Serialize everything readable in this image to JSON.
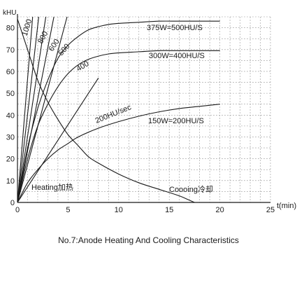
{
  "chart_data": {
    "type": "line",
    "title": "No.7:Anode Heating And Cooling Characteristics",
    "xlabel": "t(min)",
    "ylabel": "kHU",
    "xlim": [
      0,
      25
    ],
    "ylim": [
      0,
      85
    ],
    "xticks": [
      0,
      5,
      10,
      15,
      20,
      25
    ],
    "yticks": [
      0,
      10,
      20,
      30,
      40,
      50,
      60,
      70,
      80
    ],
    "grid": true,
    "series": [
      {
        "name": "1000",
        "kind": "rate",
        "x": [
          0,
          1.5
        ],
        "y": [
          0,
          85
        ]
      },
      {
        "name": "800",
        "kind": "rate",
        "x": [
          0,
          2.1
        ],
        "y": [
          0,
          85
        ]
      },
      {
        "name": "600",
        "kind": "rate",
        "x": [
          0,
          2.8
        ],
        "y": [
          0,
          85
        ]
      },
      {
        "name": "500",
        "kind": "rate",
        "x": [
          0,
          3.6
        ],
        "y": [
          0,
          85
        ]
      },
      {
        "name": "400",
        "kind": "rate",
        "x": [
          0,
          4.9
        ],
        "y": [
          0,
          85
        ]
      },
      {
        "name": "200HU/sec",
        "kind": "rate",
        "x": [
          0,
          8.0
        ],
        "y": [
          0,
          57
        ]
      },
      {
        "name": "375W=500HU/S",
        "kind": "heating",
        "x": [
          0,
          1,
          2,
          3,
          4,
          5,
          6,
          7,
          8,
          9,
          10,
          12,
          14,
          16,
          18,
          20
        ],
        "y": [
          0,
          25,
          43,
          56,
          66,
          72,
          76,
          79,
          80.5,
          81.5,
          82,
          82.5,
          83,
          83,
          83,
          83
        ]
      },
      {
        "name": "300W=400HU/S",
        "kind": "heating",
        "x": [
          0,
          1,
          2,
          3,
          4,
          5,
          6,
          7,
          8,
          9,
          10,
          12,
          14,
          16,
          18,
          20
        ],
        "y": [
          0,
          20,
          35,
          45,
          53,
          59,
          63,
          65.5,
          67,
          68,
          68.5,
          69,
          69.5,
          69.5,
          69.5,
          69.5
        ]
      },
      {
        "name": "150W=200HU/S",
        "kind": "heating",
        "x": [
          0,
          1,
          2,
          3,
          4,
          5,
          6,
          8,
          10,
          12,
          14,
          16,
          18,
          20
        ],
        "y": [
          0,
          9,
          15,
          20,
          24,
          27,
          30,
          34,
          37,
          39.5,
          41.5,
          43,
          44,
          45
        ]
      },
      {
        "name": "Cooling",
        "kind": "cooling",
        "x": [
          0,
          1,
          2,
          3,
          4,
          5,
          6,
          7,
          8,
          10,
          12,
          14,
          16,
          17,
          17.5
        ],
        "y": [
          84,
          70,
          56,
          46,
          38,
          31,
          26,
          21,
          18,
          13,
          9,
          6,
          3,
          1,
          0
        ]
      }
    ],
    "annotations": [
      {
        "text": "Heating加热",
        "x": 1.4,
        "y": 6
      },
      {
        "text": "Coooing冷却",
        "x": 14.8,
        "y": 5
      }
    ]
  }
}
